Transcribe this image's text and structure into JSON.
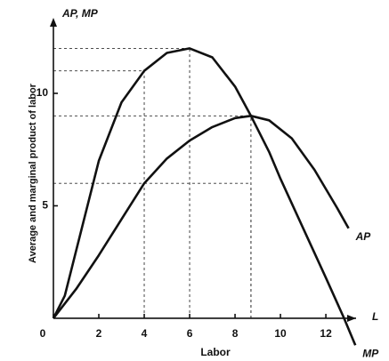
{
  "chart_data": {
    "type": "line",
    "y_axis_title": "AP, MP",
    "x_axis_title": "L",
    "x_label": "Labor",
    "y_label": "Average and marginal product of labor",
    "xlim": [
      0,
      13.33
    ],
    "ylim": [
      -1.9,
      13.36
    ],
    "xticks": [
      0,
      2,
      4,
      6,
      8,
      10,
      12
    ],
    "yticks": [
      5,
      10
    ],
    "guides": [
      {
        "x": 4,
        "y": 11
      },
      {
        "x": 6,
        "y": 12
      },
      {
        "x": 8.7,
        "y": 9
      },
      {
        "x": 8.7,
        "y": 6
      }
    ],
    "series": [
      {
        "name": "MP",
        "color": "#111111",
        "x": [
          0,
          0.5,
          1,
          2,
          3,
          4,
          5,
          6,
          7,
          8,
          8.7,
          9.5,
          10,
          11,
          12,
          12.8,
          13.3
        ],
        "values": [
          0,
          1,
          3,
          7,
          9.6,
          11,
          11.8,
          12,
          11.6,
          10.3,
          9,
          7.4,
          6.2,
          4,
          1.8,
          0,
          -1.2
        ]
      },
      {
        "name": "AP",
        "color": "#111111",
        "x": [
          0,
          1,
          2,
          3,
          4,
          5,
          6,
          7,
          8,
          8.7,
          9.5,
          10.5,
          11.5,
          12.5,
          13
        ],
        "values": [
          0,
          1.3,
          2.8,
          4.4,
          6,
          7.1,
          7.9,
          8.5,
          8.9,
          9,
          8.8,
          8,
          6.6,
          4.9,
          4
        ]
      }
    ]
  }
}
